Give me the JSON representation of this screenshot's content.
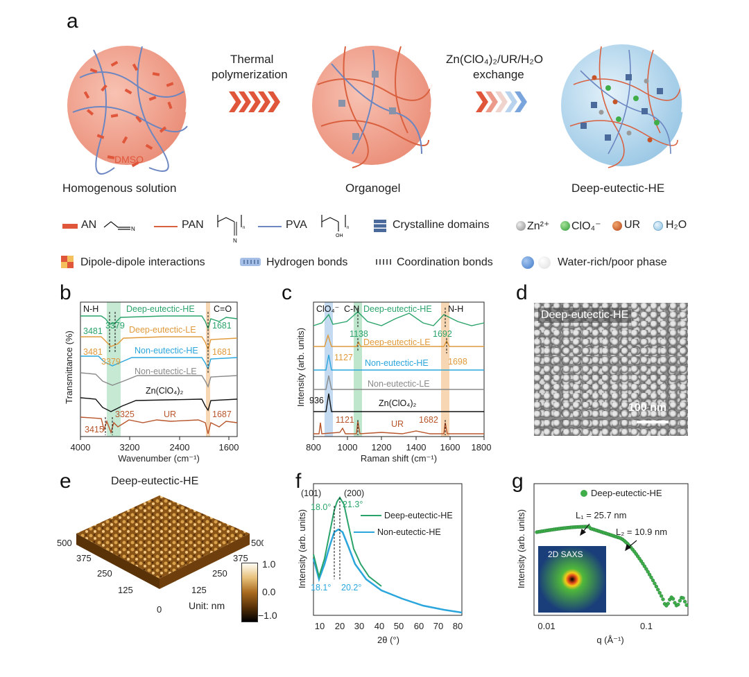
{
  "panels": {
    "a": "a",
    "b": "b",
    "c": "c",
    "d": "d",
    "e": "e",
    "f": "f",
    "g": "g"
  },
  "schematic": {
    "step1_line1": "Thermal",
    "step1_line2": "polymerization",
    "step2_line1": "Zn(ClO₄)₂/UR/H₂O",
    "step2_line2": "exchange",
    "sphere1_label": "Homogenous solution",
    "sphere1_inner": "DMSO",
    "sphere2_label": "Organogel",
    "sphere3_label": "Deep-eutectic-HE",
    "colors": {
      "red": "#e0563a",
      "blue": "#6b86c0",
      "sphere_red": "#f1a290",
      "sphere_blue": "#a9d1ea"
    }
  },
  "legend": {
    "an": "AN",
    "pan": "PAN",
    "pva": "PVA",
    "crystalline": "Crystalline domains",
    "zn": "Zn²⁺",
    "clo4": "ClO₄⁻",
    "ur": "UR",
    "h2o": "H₂O",
    "dipole": "Dipole-dipole interactions",
    "hbond": "Hydrogen bonds",
    "coord": "Coordination bonds",
    "phase": "Water-rich/poor phase"
  },
  "chart_data": [
    {
      "panel": "b",
      "type": "line",
      "xlabel": "Wavenumber (cm⁻¹)",
      "ylabel": "Transmittance (%)",
      "xlim": [
        4000,
        1000
      ],
      "xticks": [
        "4000",
        "3200",
        "2400",
        "1600"
      ],
      "band_labels": [
        "N-H",
        "C=O"
      ],
      "series": [
        {
          "name": "Deep-eutectic-HE",
          "color": "#2aa36a",
          "peaks": [
            "3481",
            "3379",
            "1681"
          ]
        },
        {
          "name": "Deep-eutectic-LE",
          "color": "#e09a3b",
          "peaks": [
            "3481",
            "3379",
            "1681"
          ]
        },
        {
          "name": "Non-eutectic-HE",
          "color": "#2aa6dc",
          "peaks": []
        },
        {
          "name": "Non-eutectic-LE",
          "color": "#8a8a8a",
          "peaks": []
        },
        {
          "name": "Zn(ClO₄)₂",
          "color": "#111111",
          "peaks": []
        },
        {
          "name": "UR",
          "color": "#b8552b",
          "peaks": [
            "3415",
            "3325",
            "1687"
          ]
        }
      ],
      "labels": {
        "s0": "Deep-eutectic-HE",
        "s1": "Deep-eutectic-LE",
        "s2": "Non-eutectic-HE",
        "s3": "Non-eutectic-LE",
        "s4": "Zn(ClO₄)₂",
        "s5": "UR",
        "p3379a": "3379",
        "p3481a": "3481",
        "p1681a": "1681",
        "p3481b": "3481",
        "p3379b": "3379",
        "p1681b": "1681",
        "p3415": "3415",
        "p3325": "3325",
        "p1687": "1687"
      }
    },
    {
      "panel": "c",
      "type": "line",
      "xlabel": "Raman shift (cm⁻¹)",
      "ylabel": "Intensity (arb. units)",
      "xlim": [
        800,
        1800
      ],
      "xticks": [
        "800",
        "1000",
        "1200",
        "1400",
        "1600",
        "1800"
      ],
      "band_labels": [
        "ClO₄⁻",
        "C-N",
        "N-H"
      ],
      "series": [
        {
          "name": "Deep-eutectic-HE",
          "color": "#2aa36a"
        },
        {
          "name": "Deep-eutectic-LE",
          "color": "#e09a3b"
        },
        {
          "name": "Non-eutectic-HE",
          "color": "#2aa6dc"
        },
        {
          "name": "Non-eutectic-LE",
          "color": "#8a8a8a"
        },
        {
          "name": "Zn(ClO₄)₂",
          "color": "#111111"
        },
        {
          "name": "UR",
          "color": "#b8552b"
        }
      ],
      "labels": {
        "s0": "Deep-eutectic-HE",
        "s1": "Deep-eutectic-LE",
        "s2": "Non-eutectic-HE",
        "s3": "Non-eutectic-LE",
        "s4": "Zn(ClO₄)₂",
        "s5": "UR",
        "p1138": "1138",
        "p1692": "1692",
        "p1127": "1127",
        "p1698": "1698",
        "p936": "936",
        "p1121": "1121",
        "p1682": "1682"
      }
    },
    {
      "panel": "f",
      "type": "line",
      "xlabel": "2θ (°)",
      "ylabel": "Intensity (arb. units)",
      "xlim": [
        5,
        80
      ],
      "xticks": [
        "10",
        "20",
        "30",
        "40",
        "50",
        "60",
        "70",
        "80"
      ],
      "series": [
        {
          "name": "Deep-eutectic-HE",
          "color": "#2aa36a",
          "peaks": [
            "18.0°",
            "21.3°"
          ]
        },
        {
          "name": "Non-eutectic-HE",
          "color": "#2aa6dc",
          "peaks": [
            "18.1°",
            "20.2°"
          ]
        }
      ],
      "labels": {
        "p101": "(101)",
        "p200": "(200)",
        "g1": "18.0°",
        "g2": "21.3°",
        "b1": "18.1°",
        "b2": "20.2°"
      }
    },
    {
      "panel": "g",
      "type": "scatter",
      "xlabel": "q (Å⁻¹)",
      "ylabel": "Intensity (arb. units)",
      "xscale": "log",
      "xticks": [
        "0.01",
        "0.1"
      ],
      "series": [
        {
          "name": "Deep-eutectic-HE",
          "color": "#2aa36a"
        }
      ],
      "annotations": [
        "L₁ = 25.7 nm",
        "L₂ = 10.9 nm",
        "2D SAXS"
      ]
    }
  ],
  "sem": {
    "label": "Deep-eutectic-HE",
    "scale": "100 nm"
  },
  "afm": {
    "title": "Deep-eutectic-HE",
    "axis_ticks": [
      "500",
      "375",
      "250",
      "125",
      "0",
      "125",
      "250",
      "375",
      "500"
    ],
    "colorbar_ticks": [
      "1.0",
      "0.0",
      "−1.0"
    ],
    "unit": "Unit: nm"
  }
}
